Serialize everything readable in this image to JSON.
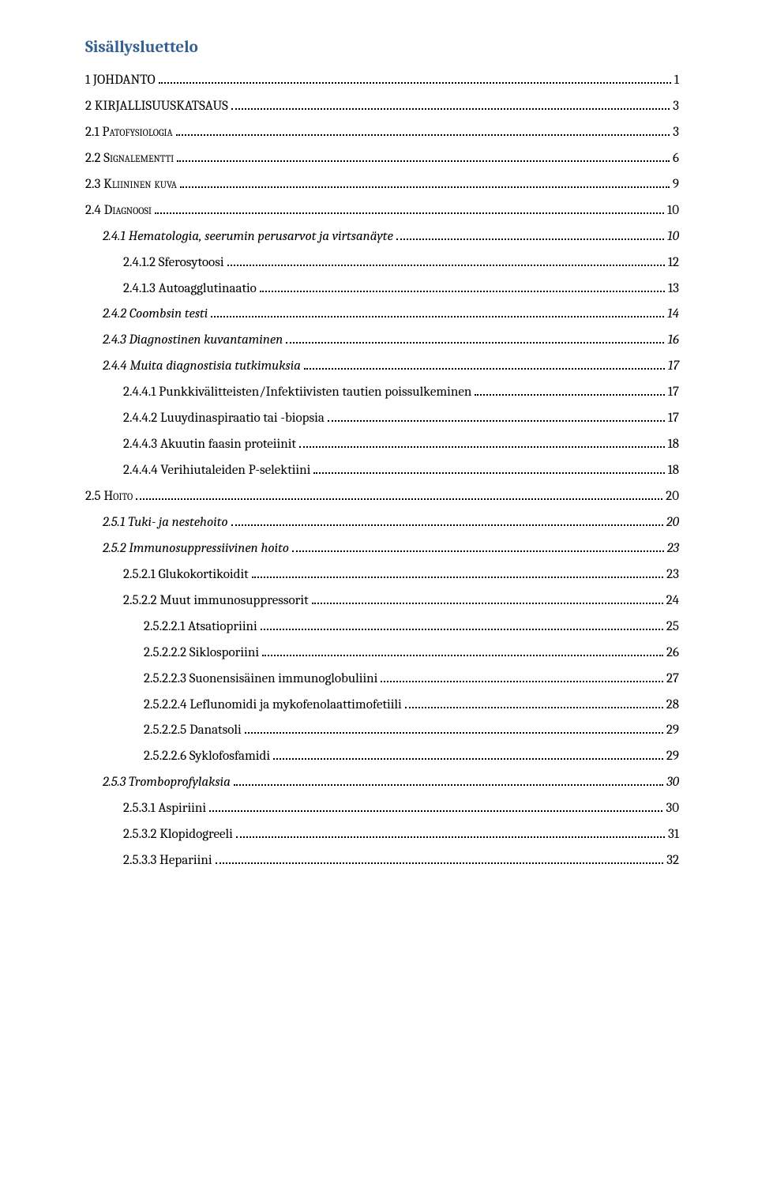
{
  "toc_title": "Sisällysluettelo",
  "entries": [
    {
      "level": 1,
      "label": "1 JOHDANTO",
      "page": "1"
    },
    {
      "level": 1,
      "label": "2 KIRJALLISUUSKATSAUS",
      "page": "3"
    },
    {
      "level": 2,
      "label": "2.1 Patofysiologia",
      "page": "3"
    },
    {
      "level": 2,
      "label": "2.2 Signalementti",
      "page": "6"
    },
    {
      "level": 2,
      "label": "2.3 Kliininen kuva",
      "page": "9"
    },
    {
      "level": 2,
      "label": "2.4 Diagnoosi",
      "page": "10"
    },
    {
      "level": 3,
      "label": "2.4.1 Hematologia, seerumin perusarvot ja virtsanäyte",
      "page": "10"
    },
    {
      "level": 4,
      "label": "2.4.1.2 Sferosytoosi",
      "page": "12"
    },
    {
      "level": 4,
      "label": "2.4.1.3 Autoagglutinaatio",
      "page": "13"
    },
    {
      "level": 3,
      "label": "2.4.2 Coombsin testi",
      "page": "14"
    },
    {
      "level": 3,
      "label": "2.4.3 Diagnostinen kuvantaminen",
      "page": "16"
    },
    {
      "level": 3,
      "label": "2.4.4 Muita diagnostisia tutkimuksia",
      "page": "17"
    },
    {
      "level": 4,
      "label": "2.4.4.1 Punkkivälitteisten/Infektiivisten tautien poissulkeminen",
      "page": "17"
    },
    {
      "level": 4,
      "label": "2.4.4.2 Luuydinaspiraatio tai -biopsia",
      "page": "17"
    },
    {
      "level": 4,
      "label": "2.4.4.3 Akuutin faasin proteiinit",
      "page": "18"
    },
    {
      "level": 4,
      "label": "2.4.4.4 Verihiutaleiden P-selektiini",
      "page": "18"
    },
    {
      "level": 2,
      "label": "2.5 Hoito",
      "page": "20"
    },
    {
      "level": 3,
      "label": "2.5.1 Tuki- ja nestehoito",
      "page": "20"
    },
    {
      "level": 3,
      "label": "2.5.2 Immunosuppressiivinen hoito",
      "page": "23"
    },
    {
      "level": 4,
      "label": "2.5.2.1 Glukokortikoidit",
      "page": "23"
    },
    {
      "level": 4,
      "label": "2.5.2.2 Muut immunosuppressorit",
      "page": "24"
    },
    {
      "level": 5,
      "label": "2.5.2.2.1 Atsatiopriini",
      "page": "25"
    },
    {
      "level": 5,
      "label": "2.5.2.2.2 Siklosporiini",
      "page": "26"
    },
    {
      "level": 5,
      "label": "2.5.2.2.3 Suonensisäinen immunoglobuliini",
      "page": "27"
    },
    {
      "level": 5,
      "label": "2.5.2.2.4 Leflunomidi ja mykofenolaattimofetiili",
      "page": "28"
    },
    {
      "level": 5,
      "label": "2.5.2.2.5 Danatsoli",
      "page": "29"
    },
    {
      "level": 5,
      "label": "2.5.2.2.6 Syklofosfamidi",
      "page": "29"
    },
    {
      "level": 3,
      "label": "2.5.3 Tromboprofylaksia",
      "page": "30"
    },
    {
      "level": 4,
      "label": "2.5.3.1 Aspiriini",
      "page": "30"
    },
    {
      "level": 4,
      "label": "2.5.3.2 Klopidogreeli",
      "page": "31"
    },
    {
      "level": 4,
      "label": "2.5.3.3 Hepariini",
      "page": "32"
    }
  ],
  "colors": {
    "title": "#365f91",
    "text": "#000000",
    "background": "#ffffff",
    "dots": "#000000"
  },
  "typography": {
    "title_fontsize_pt": 16,
    "body_fontsize_pt": 13,
    "font_family": "Cambria"
  }
}
